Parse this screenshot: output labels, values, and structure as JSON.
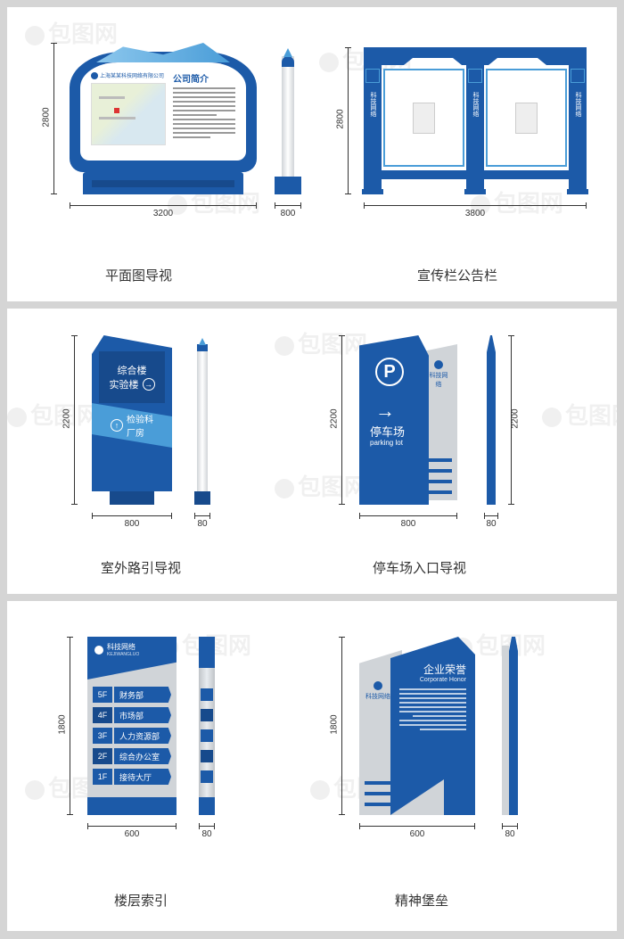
{
  "colors": {
    "primary_blue": "#1c5aa8",
    "dark_blue": "#174a8c",
    "light_blue": "#4a9dd8",
    "sky_blue": "#8cc7ed",
    "gray_bg": "#d5d5d5",
    "panel_bg": "#ffffff",
    "dim_line": "#333333",
    "text": "#333333",
    "white": "#ffffff",
    "gray_panel": "#d0d4d8"
  },
  "watermark": "包图网",
  "panel1": {
    "caption_left": "平面图导视",
    "caption_right": "宣传栏公告栏",
    "freestand": {
      "width_mm": "3200",
      "side_width_mm": "800",
      "height_mm": "2800",
      "company_label": "上海某某科技网络有限公司",
      "title": "公司简介"
    },
    "bulletin": {
      "width_mm": "3800",
      "height_mm": "2800",
      "pillar_label": "科技网络"
    }
  },
  "panel2": {
    "caption_left": "室外路引导视",
    "caption_right": "停车场入口导视",
    "pylon_left": {
      "height_mm": "2200",
      "width_mm": "800",
      "side_mm": "80",
      "line1": "综合楼",
      "line2": "实验楼",
      "line3": "检验科",
      "line4": "厂房"
    },
    "pylon_right": {
      "height_mm": "2200",
      "side_height_mm": "2200",
      "width_mm": "800",
      "side_mm": "80",
      "parking_zh": "停车场",
      "parking_en": "parking lot",
      "brand": "科技网络"
    }
  },
  "panel3": {
    "caption_left": "楼层索引",
    "caption_right": "精神堡垒",
    "directory": {
      "height_mm": "1800",
      "width_mm": "600",
      "side_mm": "80",
      "brand": "科技网络",
      "brand_en": "KEJIWANGLUO",
      "floors": [
        {
          "num": "5F",
          "name": "财务部",
          "num_bg": "#1c5aa8"
        },
        {
          "num": "4F",
          "name": "市场部",
          "num_bg": "#174a8c"
        },
        {
          "num": "3F",
          "name": "人力资源部",
          "num_bg": "#1c5aa8"
        },
        {
          "num": "2F",
          "name": "综合办公室",
          "num_bg": "#174a8c"
        },
        {
          "num": "1F",
          "name": "接待大厅",
          "num_bg": "#1c5aa8"
        }
      ]
    },
    "monument": {
      "height_mm": "1800",
      "width_mm": "600",
      "side_mm": "80",
      "title_zh": "企业荣誉",
      "title_en": "Corporate Honor",
      "brand": "科技网络"
    }
  }
}
